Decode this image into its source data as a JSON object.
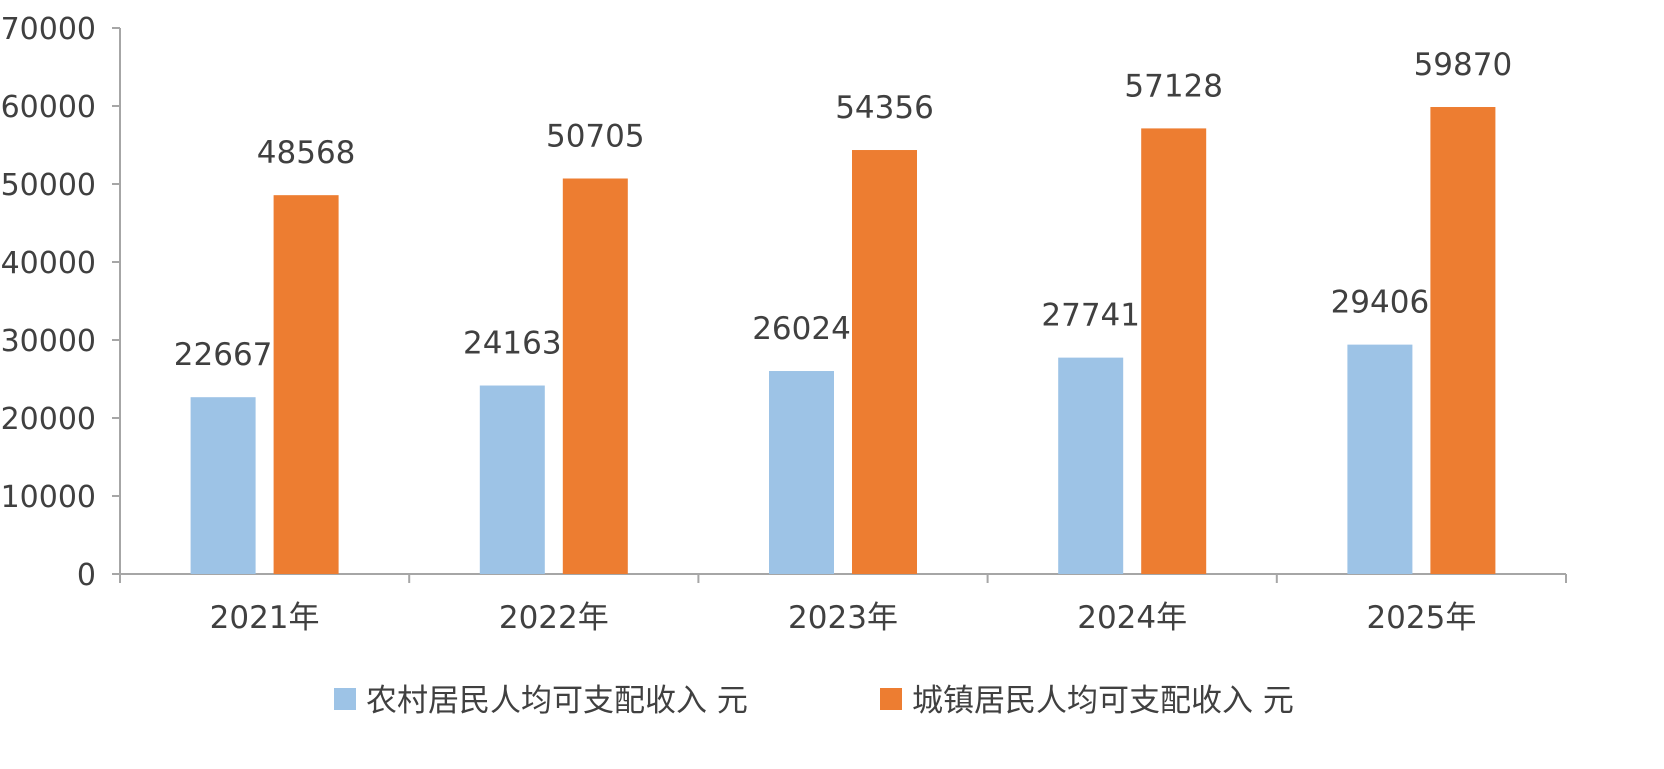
{
  "chart_data": {
    "type": "bar",
    "categories": [
      "2021年",
      "2022年",
      "2023年",
      "2024年",
      "2025年"
    ],
    "series": [
      {
        "name": "农村居民人均可支配收入 元",
        "values": [
          22667,
          24163,
          26024,
          27741,
          29406
        ],
        "color": "#9DC3E6"
      },
      {
        "name": "城镇居民人均可支配收入 元",
        "values": [
          48568,
          50705,
          54356,
          57128,
          59870
        ],
        "color": "#ED7D31"
      }
    ],
    "ylim": [
      0,
      70000
    ],
    "yticks": [
      "0",
      "10000",
      "20000",
      "30000",
      "40000",
      "50000",
      "60000",
      "70000"
    ],
    "grid": false,
    "legend_position": "bottom",
    "axis_color": "#A6A6A6",
    "text_color": "#404040"
  }
}
